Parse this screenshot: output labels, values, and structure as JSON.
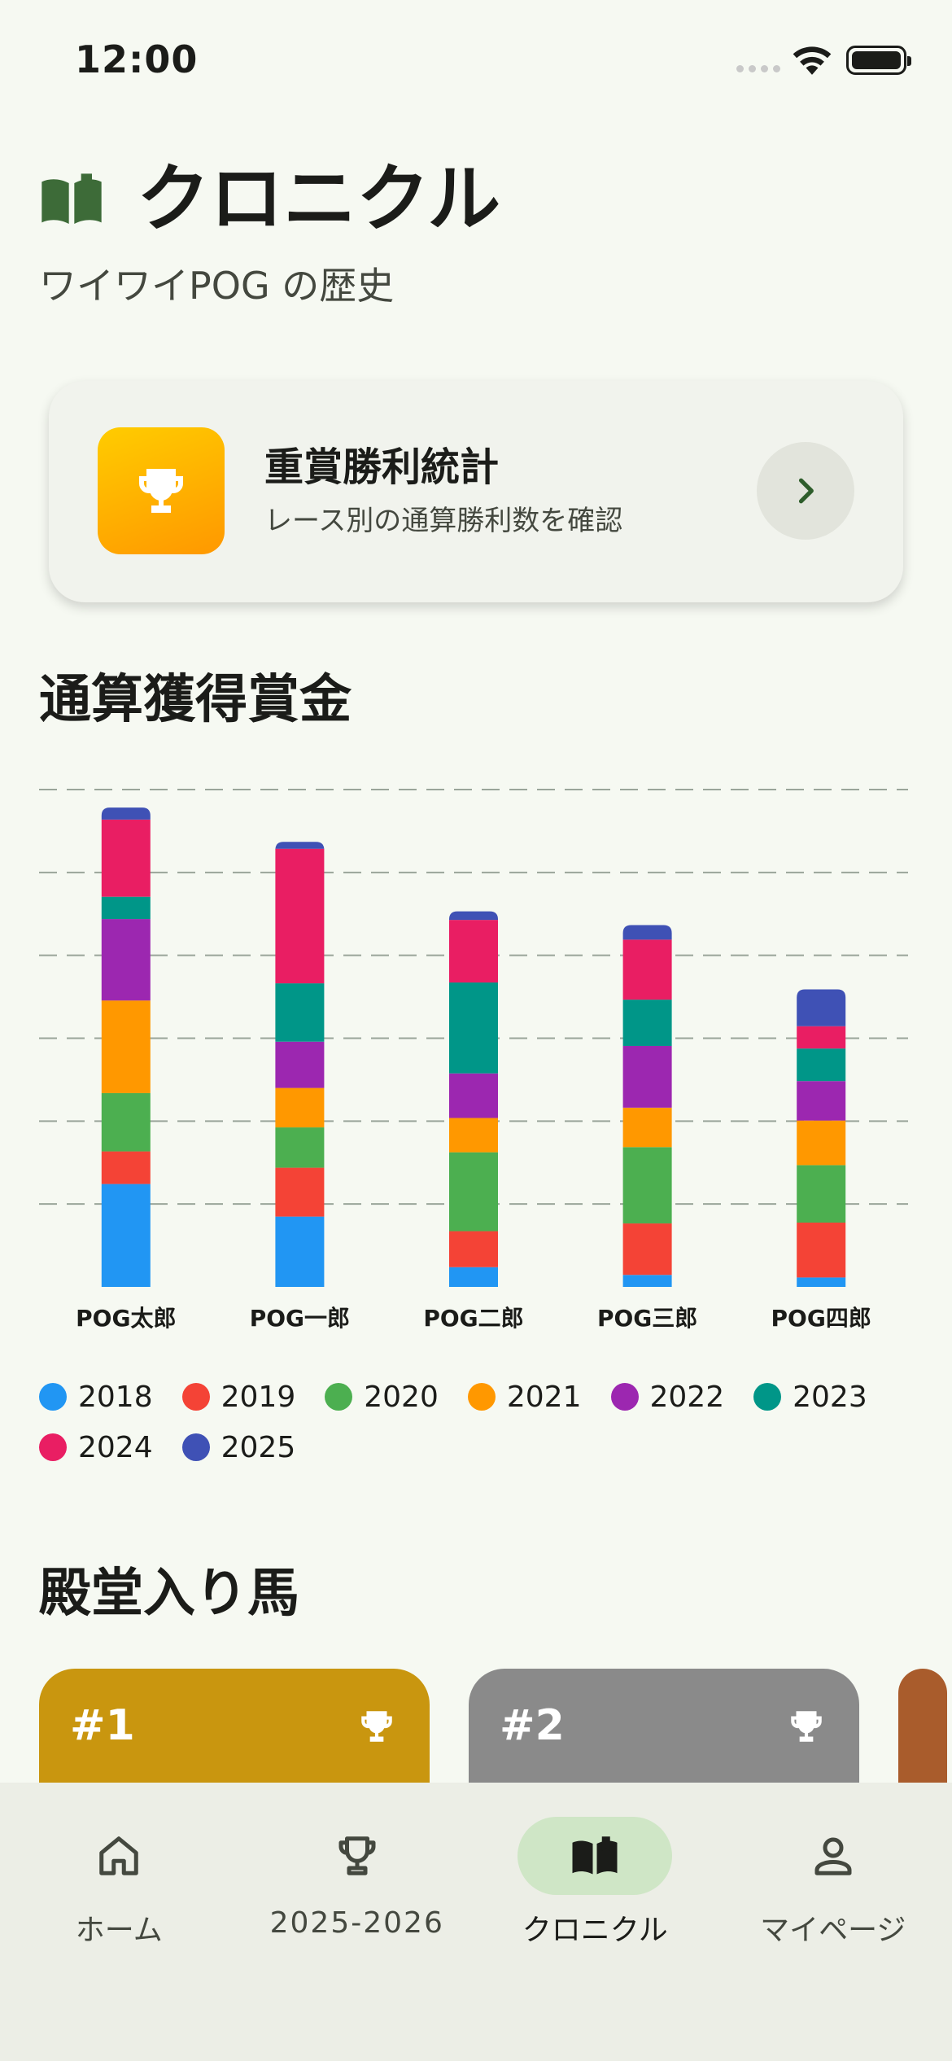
{
  "status": {
    "time": "12:00"
  },
  "header": {
    "title": "クロニクル",
    "subtitle": "ワイワイPOG の歴史"
  },
  "stats_card": {
    "title": "重賞勝利統計",
    "subtitle": "レース別の通算勝利数を確認"
  },
  "sections": {
    "earnings": "通算獲得賞金",
    "hall_of_fame": "殿堂入り馬"
  },
  "chart_data": {
    "type": "bar",
    "stacked": true,
    "categories": [
      "POG太郎",
      "POG一郎",
      "POG二郎",
      "POG三郎",
      "POG四郎"
    ],
    "ylim": [
      0,
      5.8
    ],
    "grid": true,
    "legend_position": "bottom",
    "series": [
      {
        "name": "2018",
        "color": "#2196f3",
        "values": [
          1.2,
          0.82,
          0.23,
          0.14,
          0.11
        ]
      },
      {
        "name": "2019",
        "color": "#f44336",
        "values": [
          0.38,
          0.57,
          0.42,
          0.6,
          0.64
        ]
      },
      {
        "name": "2020",
        "color": "#4caf50",
        "values": [
          0.68,
          0.47,
          0.92,
          0.89,
          0.67
        ]
      },
      {
        "name": "2021",
        "color": "#ff9800",
        "values": [
          1.08,
          0.46,
          0.4,
          0.46,
          0.52
        ]
      },
      {
        "name": "2022",
        "color": "#9c27b0",
        "values": [
          0.95,
          0.54,
          0.52,
          0.72,
          0.46
        ]
      },
      {
        "name": "2023",
        "color": "#009688",
        "values": [
          0.26,
          0.68,
          1.06,
          0.54,
          0.38
        ]
      },
      {
        "name": "2024",
        "color": "#e91e63",
        "values": [
          0.9,
          1.57,
          0.73,
          0.7,
          0.26
        ]
      },
      {
        "name": "2025",
        "color": "#3f51b5",
        "values": [
          0.14,
          0.08,
          0.1,
          0.17,
          0.43
        ]
      }
    ]
  },
  "hall_of_fame": [
    {
      "rank": "#1",
      "color": "#c9960f"
    },
    {
      "rank": "#2",
      "color": "#8a8a8a"
    },
    {
      "rank": "",
      "color": "#a95c2c"
    }
  ],
  "nav": [
    {
      "label": "ホーム",
      "icon": "home-icon"
    },
    {
      "label": "2025-2026",
      "icon": "trophy-icon"
    },
    {
      "label": "クロニクル",
      "icon": "book-icon",
      "active": true
    },
    {
      "label": "マイページ",
      "icon": "person-icon"
    }
  ]
}
